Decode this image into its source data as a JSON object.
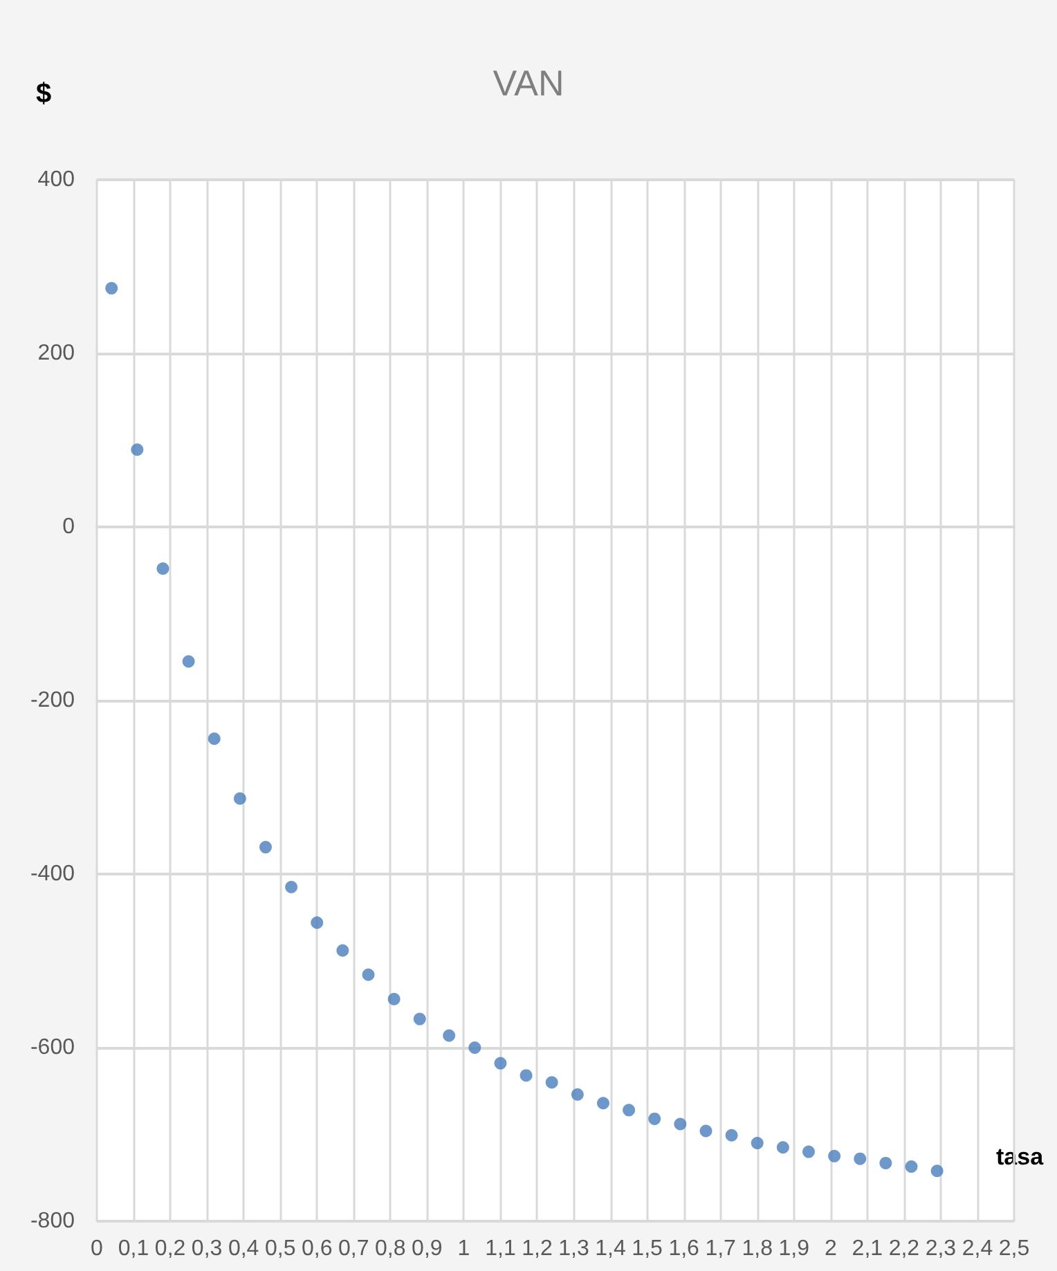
{
  "chart_data": {
    "type": "scatter",
    "title": "VAN",
    "xlabel": "tasa",
    "ylabel": "$",
    "x": [
      0.04,
      0.11,
      0.18,
      0.25,
      0.32,
      0.39,
      0.46,
      0.53,
      0.6,
      0.67,
      0.74,
      0.81,
      0.88,
      0.96,
      1.03,
      1.1,
      1.17,
      1.24,
      1.31,
      1.38,
      1.45,
      1.52,
      1.59,
      1.66,
      1.73,
      1.8,
      1.87,
      1.94,
      2.01,
      2.08,
      2.15,
      2.22,
      2.29
    ],
    "series": [
      {
        "color": "#4a7ebb",
        "values": [
          275,
          89,
          -48,
          -155,
          -244,
          -313,
          -369,
          -415,
          -456,
          -488,
          -516,
          -544,
          -567,
          -586,
          -600,
          -618,
          -632,
          -640,
          -654,
          -664,
          -672,
          -682,
          -688,
          -696,
          -701,
          -710,
          -715,
          -720,
          -725,
          -728,
          -733,
          -737,
          -742
        ]
      }
    ],
    "xlim": [
      0,
      2.5
    ],
    "xticks": [
      0,
      {
        "value": 0.1,
        "label": "0,1"
      },
      {
        "value": 0.2,
        "label": "0,2"
      },
      {
        "value": 0.3,
        "label": "0,3"
      },
      {
        "value": 0.4,
        "label": "0,4"
      },
      {
        "value": 0.5,
        "label": "0,5"
      },
      {
        "value": 0.6,
        "label": "0,6"
      },
      {
        "value": 0.7,
        "label": "0,7"
      },
      {
        "value": 0.8,
        "label": "0,8"
      },
      {
        "value": 0.9,
        "label": "0,9"
      },
      1,
      {
        "value": 1.1,
        "label": "1,1"
      },
      {
        "value": 1.2,
        "label": "1,2"
      },
      {
        "value": 1.3,
        "label": "1,3"
      },
      {
        "value": 1.4,
        "label": "1,4"
      },
      {
        "value": 1.5,
        "label": "1,5"
      },
      {
        "value": 1.6,
        "label": "1,6"
      },
      {
        "value": 1.7,
        "label": "1,7"
      },
      {
        "value": 1.8,
        "label": "1,8"
      },
      {
        "value": 1.9,
        "label": "1,9"
      },
      2,
      {
        "value": 2.1,
        "label": "2,1"
      },
      {
        "value": 2.2,
        "label": "2,2"
      },
      {
        "value": 2.3,
        "label": "2,3"
      },
      {
        "value": 2.4,
        "label": "2,4"
      },
      {
        "value": 2.5,
        "label": "2,5"
      }
    ],
    "ylim": [
      -800,
      400
    ],
    "yticks": [
      -800,
      -600,
      -400,
      -200,
      0,
      200,
      400
    ],
    "grid": true,
    "marker": "circle"
  }
}
